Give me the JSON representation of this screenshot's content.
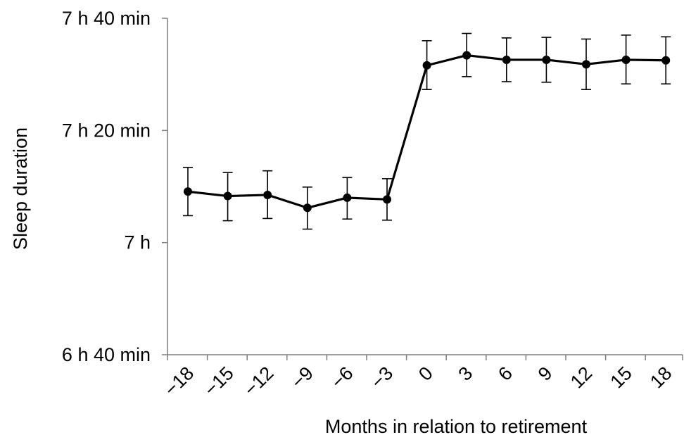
{
  "chart_data": {
    "type": "line",
    "title": "",
    "xlabel": "Months in relation to retirement",
    "ylabel": "Sleep duration",
    "x": [
      -18,
      -15,
      -12,
      -9,
      -6,
      -3,
      0,
      3,
      6,
      9,
      12,
      15,
      18
    ],
    "x_tick_labels": [
      "−18",
      "−15",
      "−12",
      "−9",
      "−6",
      "−3",
      "0",
      "3",
      "6",
      "9",
      "12",
      "15",
      "18"
    ],
    "y_unit": "minutes",
    "y_ticks": [
      400,
      420,
      440,
      460
    ],
    "y_tick_labels": [
      "6 h 40 min",
      "7 h",
      "7 h 20 min",
      "7 h 40 min"
    ],
    "ylim": [
      400,
      460
    ],
    "series": [
      {
        "values": [
          429.1,
          428.3,
          428.5,
          426.2,
          428.0,
          427.7,
          451.6,
          453.4,
          452.6,
          452.6,
          451.8,
          452.6,
          452.5
        ],
        "error_low": [
          424.8,
          423.9,
          424.3,
          422.4,
          424.2,
          424.0,
          447.3,
          449.6,
          448.7,
          448.6,
          447.3,
          448.3,
          448.3
        ],
        "error_high": [
          433.4,
          432.5,
          432.8,
          429.9,
          431.6,
          431.4,
          456.0,
          457.3,
          456.5,
          456.6,
          456.3,
          457.0,
          456.7
        ],
        "color": "#000000"
      }
    ],
    "grid": false,
    "legend": "none"
  }
}
